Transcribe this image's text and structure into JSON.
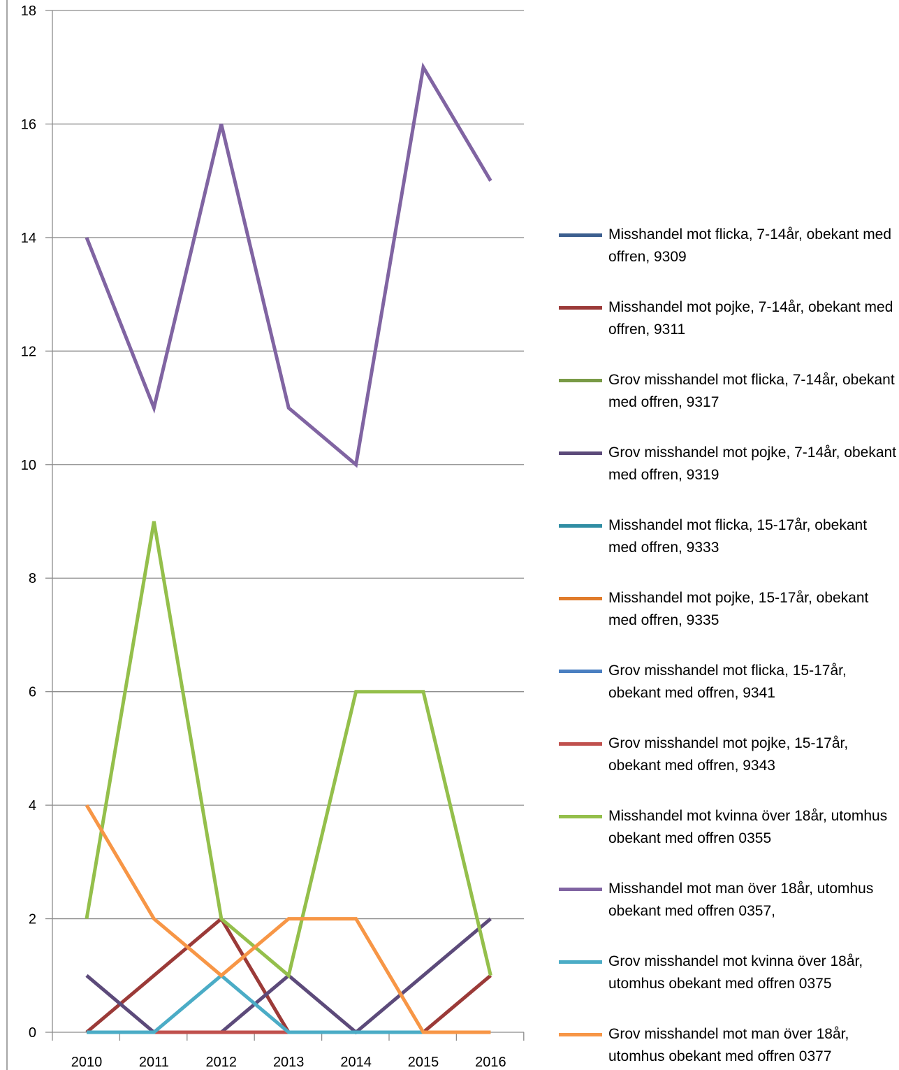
{
  "chart_data": {
    "type": "line",
    "title": "",
    "xlabel": "",
    "ylabel": "",
    "x": [
      "2010",
      "2011",
      "2012",
      "2013",
      "2014",
      "2015",
      "2016"
    ],
    "ylim": [
      0,
      18
    ],
    "yticks": [
      "0",
      "2",
      "4",
      "6",
      "8",
      "10",
      "12",
      "14",
      "16",
      "18"
    ],
    "grid": true,
    "legend_position": "right",
    "series": [
      {
        "name": "Misshandel mot flicka, 7-14år, obekant med offren, 9309",
        "color": "#3c5f8f",
        "values": [
          0,
          0,
          0,
          0,
          0,
          0,
          0
        ]
      },
      {
        "name": "Misshandel mot pojke, 7-14år, obekant med offren, 9311",
        "color": "#9b3a38",
        "values": [
          0,
          1,
          2,
          0,
          0,
          0,
          1
        ]
      },
      {
        "name": "Grov misshandel mot flicka, 7-14år, obekant med offren, 9317",
        "color": "#799a46",
        "values": [
          0,
          0,
          0,
          0,
          0,
          0,
          0
        ]
      },
      {
        "name": "Grov misshandel mot pojke, 7-14år, obekant med offren, 9319",
        "color": "#5c4a7a",
        "values": [
          1,
          0,
          0,
          1,
          0,
          1,
          2
        ]
      },
      {
        "name": "Misshandel mot flicka, 15-17år, obekant med offren, 9333",
        "color": "#2f8da3",
        "values": [
          0,
          0,
          0,
          0,
          0,
          0,
          0
        ]
      },
      {
        "name": "Misshandel mot pojke, 15-17år, obekant med offren, 9335",
        "color": "#e07b2a",
        "values": [
          0,
          0,
          0,
          0,
          0,
          0,
          0
        ]
      },
      {
        "name": "Grov misshandel mot flicka, 15-17år, obekant med offren, 9341",
        "color": "#4a7fc1",
        "values": [
          0,
          0,
          0,
          0,
          0,
          0,
          0
        ]
      },
      {
        "name": "Grov misshandel mot pojke, 15-17år, obekant med offren, 9343",
        "color": "#c0504d",
        "values": [
          0,
          0,
          0,
          0,
          0,
          0,
          0
        ]
      },
      {
        "name": "Misshandel mot kvinna över 18år, utomhus obekant med offren 0355",
        "color": "#94bf4b",
        "values": [
          2,
          9,
          2,
          1,
          6,
          6,
          1
        ]
      },
      {
        "name": "Misshandel mot man över 18år, utomhus obekant med offren 0357,",
        "color": "#8064a2",
        "values": [
          14,
          11,
          16,
          11,
          10,
          17,
          15
        ]
      },
      {
        "name": "Grov misshandel mot kvinna över 18år, utomhus obekant med offren 0375",
        "color": "#4bacc6",
        "values": [
          0,
          0,
          1,
          0,
          0,
          0,
          0
        ]
      },
      {
        "name": "Grov misshandel mot man över 18år, utomhus obekant med offren 0377",
        "color": "#f79646",
        "values": [
          4,
          2,
          1,
          2,
          2,
          0,
          0
        ]
      }
    ]
  }
}
